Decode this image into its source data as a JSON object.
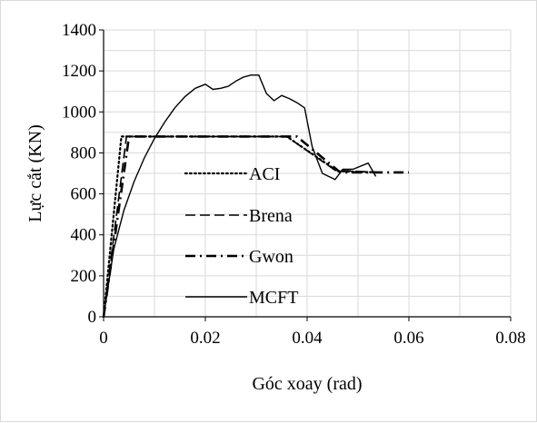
{
  "chart_data": {
    "type": "line",
    "xlabel": "Góc xoay (rad)",
    "ylabel": "Lực cắt (KN)",
    "xlim": [
      0,
      0.08
    ],
    "ylim": [
      0,
      1400
    ],
    "xticks": [
      0,
      0.02,
      0.04,
      0.06,
      0.08
    ],
    "yticks": [
      0,
      200,
      400,
      600,
      800,
      1000,
      1200,
      1400
    ],
    "xtick_labels": [
      "0",
      "0.02",
      "0.04",
      "0.06",
      "0.08"
    ],
    "ytick_labels": [
      "0",
      "200",
      "400",
      "600",
      "800",
      "1000",
      "1200",
      "1400"
    ],
    "grid": true,
    "legend_position": "inside-center",
    "series": [
      {
        "name": "ACI",
        "style": "dotted",
        "x": [
          0,
          0.0035,
          0.036,
          0.046,
          0.054
        ],
        "y": [
          0,
          880,
          880,
          710,
          705
        ]
      },
      {
        "name": "Brena",
        "style": "long-dash",
        "x": [
          0,
          0.0045,
          0.036,
          0.0455,
          0.054
        ],
        "y": [
          0,
          880,
          880,
          715,
          705
        ]
      },
      {
        "name": "Gwon",
        "style": "dash-dot",
        "x": [
          0,
          0.005,
          0.038,
          0.0465,
          0.06
        ],
        "y": [
          0,
          880,
          880,
          705,
          705
        ]
      },
      {
        "name": "MCFT",
        "style": "solid",
        "x": [
          0,
          0.002,
          0.004,
          0.006,
          0.008,
          0.01,
          0.012,
          0.014,
          0.016,
          0.018,
          0.02,
          0.0215,
          0.023,
          0.0245,
          0.026,
          0.0275,
          0.029,
          0.0305,
          0.032,
          0.0335,
          0.035,
          0.0365,
          0.038,
          0.0395,
          0.041,
          0.043,
          0.0455,
          0.047,
          0.049,
          0.052,
          0.0535
        ],
        "y": [
          0,
          330,
          520,
          660,
          775,
          870,
          950,
          1020,
          1075,
          1115,
          1135,
          1110,
          1115,
          1125,
          1150,
          1170,
          1180,
          1180,
          1090,
          1055,
          1080,
          1065,
          1045,
          1020,
          830,
          700,
          670,
          720,
          720,
          750,
          685
        ]
      }
    ]
  }
}
